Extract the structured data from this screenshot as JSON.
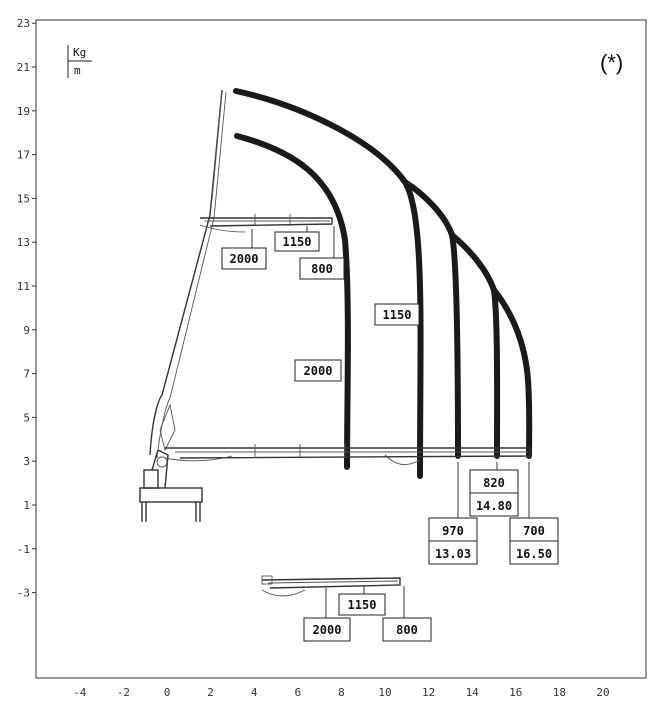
{
  "chart_data": {
    "type": "load-chart",
    "title": "(*)",
    "units": {
      "top": "Kg",
      "bottom": "m"
    },
    "x_ticks": [
      "-4",
      "-2",
      "0",
      "2",
      "4",
      "6",
      "8",
      "10",
      "12",
      "14",
      "16",
      "18",
      "20"
    ],
    "y_ticks": [
      "23",
      "21",
      "19",
      "17",
      "15",
      "13",
      "11",
      "9",
      "7",
      "5",
      "3",
      "1",
      "-1",
      "-3"
    ],
    "xlim": [
      -5.5,
      21.5
    ],
    "ylim": [
      -7.2,
      23
    ],
    "load_curves": [
      {
        "load": "2000",
        "max_reach": 8.2,
        "top": 17.6
      },
      {
        "load": "1150",
        "max_reach": 11.5,
        "top": 19.7
      },
      {
        "load": "970",
        "max_reach": 13.03
      },
      {
        "load": "820",
        "max_reach": 14.8
      },
      {
        "load": "700",
        "max_reach": 16.5
      }
    ],
    "labels": {
      "curve_2000": "2000",
      "curve_1150": "1150",
      "top_1150": "1150",
      "top_2000": "2000",
      "top_800": "800",
      "bottom_820": "820",
      "bottom_14_80": "14.80",
      "bottom_970": "970",
      "bottom_13_03": "13.03",
      "bottom_700": "700",
      "bottom_16_50": "16.50",
      "lower_1150": "1150",
      "lower_2000": "2000",
      "lower_800": "800"
    }
  }
}
